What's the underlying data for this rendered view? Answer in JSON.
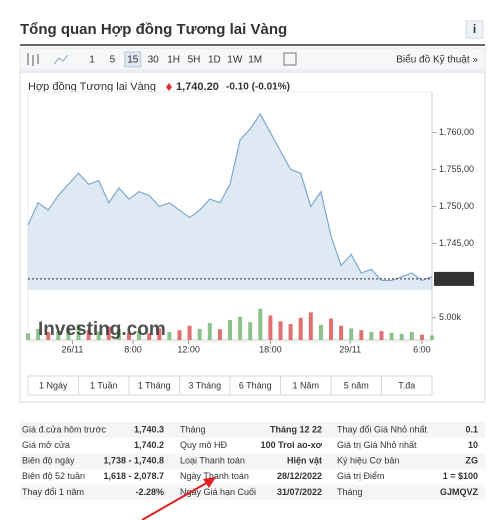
{
  "header": {
    "title": "Tổng quan Hợp đồng Tương lai Vàng"
  },
  "toolbar": {
    "intervals": [
      "1",
      "5",
      "15",
      "30",
      "1H",
      "5H",
      "1D",
      "1W",
      "1M"
    ],
    "selected_interval": "15",
    "link": "Biểu đồ Kỹ thuật »"
  },
  "chart_data": {
    "type": "area",
    "title": "Hợp đồng Tương lai Vàng",
    "price": "1,740.20",
    "change": "-0.10 (-0.01%)",
    "color": "#7fa8cf",
    "values": [
      1747.5,
      1750.5,
      1749.5,
      1751.5,
      1753,
      1754.5,
      1753,
      1753.5,
      1750.5,
      1752.5,
      1751,
      1752,
      1751.5,
      1750,
      1750.5,
      1749.5,
      1748.5,
      1749.5,
      1751,
      1750.5,
      1753,
      1759,
      1760.5,
      1762.5,
      1760,
      1757.5,
      1755,
      1754.5,
      1750,
      1752,
      1746,
      1742,
      1743.5,
      1741,
      1741.5,
      1740,
      1740,
      1740.5,
      1741,
      1740,
      1740.5
    ],
    "ylim": [
      1738.7,
      1764.4
    ],
    "yticks": [
      {
        "value": 1760,
        "label": "1.760,00"
      },
      {
        "value": 1755,
        "label": "1.755,00"
      },
      {
        "value": 1750,
        "label": "1.750,00"
      },
      {
        "value": 1745,
        "label": "1.745,00"
      }
    ],
    "last": {
      "value": 1740.2,
      "label": "1.740,20"
    },
    "xticks": [
      {
        "value": 4.4,
        "label": "26/11"
      },
      {
        "value": 10.4,
        "label": "8:00"
      },
      {
        "value": 15.9,
        "label": "12:00"
      },
      {
        "value": 24,
        "label": "18:00"
      },
      {
        "value": 31.9,
        "label": "29/11"
      },
      {
        "value": 39,
        "label": "6:00"
      }
    ],
    "volume": {
      "values": [
        1.5,
        2.5,
        1.8,
        2,
        2.8,
        3.5,
        2.2,
        1.9,
        3,
        2.4,
        1.6,
        2,
        1.5,
        2.6,
        1.8,
        2.2,
        3.2,
        2.5,
        3.8,
        2.4,
        4.5,
        5.2,
        4,
        7,
        5.5,
        4.2,
        3.6,
        5,
        6.2,
        3.4,
        4.8,
        3.2,
        2.6,
        2.2,
        1.8,
        2,
        1.6,
        1.4,
        1.8,
        1.2,
        1
      ],
      "ylim": [
        0,
        8.3
      ],
      "yticks": [
        {
          "value": 5,
          "label": "5.00k"
        }
      ],
      "up_color": "#8cc38b",
      "down_color": "#e07070"
    },
    "watermark": "Investing.com"
  },
  "ranges": [
    "1 Ngày",
    "1 Tuần",
    "1 Tháng",
    "3 Tháng",
    "6 Tháng",
    "1 Năm",
    "5 năm",
    "T.đa"
  ],
  "table": {
    "rows": [
      [
        "Giá đ.cửa hôm trước",
        "1,740.3",
        "Tháng",
        "Tháng 12 22",
        "Thay đổi Giá Nhỏ nhất",
        "0.1"
      ],
      [
        "Giá mở cửa",
        "1,740.2",
        "Quy mô HĐ",
        "100 Troi ao-xơ",
        "Giá trị Giá Nhỏ nhất",
        "10"
      ],
      [
        "Biên độ ngày",
        "1,738 - 1,740.8",
        "Loại Thanh toán",
        "Hiện vật",
        "Ký hiệu Cơ bản",
        "ZG"
      ],
      [
        "Biên độ 52 tuần",
        "1,618 - 2,078.7",
        "Ngày Thanh toán",
        "28/12/2022",
        "Giá trị Điểm",
        "1 = $100"
      ],
      [
        "Thay đổi 1 năm",
        "-2.28%",
        "Ngày Giá hạn Cuối",
        "31/07/2022",
        "Tháng",
        "GJMQVZ"
      ]
    ]
  }
}
